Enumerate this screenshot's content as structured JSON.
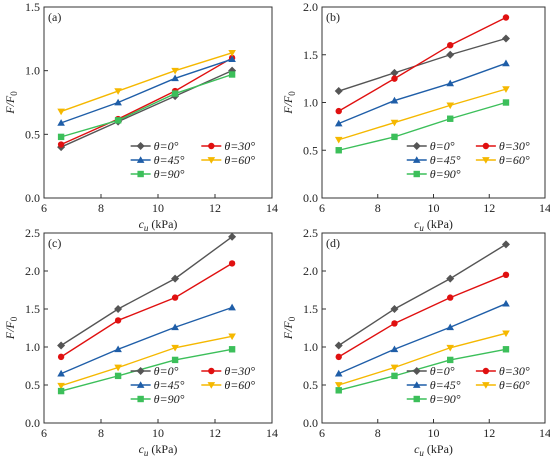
{
  "chart_data": [
    {
      "type": "line",
      "panel_label": "(a)",
      "xlabel": "c",
      "xlabel_sub": "u",
      "xlabel_unit": " (kPa)",
      "ylabel": "F/F",
      "ylabel_sub": "0",
      "xlim": [
        6,
        14
      ],
      "ylim": [
        0,
        1.5
      ],
      "xticks": [
        "6",
        "8",
        "10",
        "12",
        "14"
      ],
      "yticks": [
        "0.0",
        "0.5",
        "1.0",
        "1.5"
      ],
      "ytick_values": [
        0,
        0.5,
        1.0,
        1.5
      ],
      "x": [
        6.6,
        8.6,
        10.6,
        12.6
      ],
      "series": [
        {
          "name": "θ=0°",
          "values": [
            0.4,
            0.6,
            0.8,
            1.0
          ]
        },
        {
          "name": "θ=30°",
          "values": [
            0.42,
            0.62,
            0.84,
            1.1
          ]
        },
        {
          "name": "θ=45°",
          "values": [
            0.59,
            0.75,
            0.94,
            1.09
          ]
        },
        {
          "name": "θ=60°",
          "values": [
            0.68,
            0.84,
            1.0,
            1.14
          ]
        },
        {
          "name": "θ=90°",
          "values": [
            0.48,
            0.61,
            0.82,
            0.97
          ]
        }
      ]
    },
    {
      "type": "line",
      "panel_label": "(b)",
      "xlabel": "c",
      "xlabel_sub": "u",
      "xlabel_unit": " (kPa)",
      "ylabel": "F/F",
      "ylabel_sub": "0",
      "xlim": [
        6,
        14
      ],
      "ylim": [
        0,
        2.0
      ],
      "xticks": [
        "6",
        "8",
        "10",
        "12",
        "14"
      ],
      "yticks": [
        "0.0",
        "0.5",
        "1.0",
        "1.5",
        "2.0"
      ],
      "ytick_values": [
        0,
        0.5,
        1.0,
        1.5,
        2.0
      ],
      "x": [
        6.6,
        8.6,
        10.6,
        12.6
      ],
      "series": [
        {
          "name": "θ=0°",
          "values": [
            1.12,
            1.31,
            1.5,
            1.67
          ]
        },
        {
          "name": "θ=30°",
          "values": [
            0.91,
            1.25,
            1.6,
            1.89
          ]
        },
        {
          "name": "θ=45°",
          "values": [
            0.78,
            1.02,
            1.2,
            1.41
          ]
        },
        {
          "name": "θ=60°",
          "values": [
            0.61,
            0.79,
            0.97,
            1.14
          ]
        },
        {
          "name": "θ=90°",
          "values": [
            0.5,
            0.64,
            0.83,
            1.0
          ]
        }
      ]
    },
    {
      "type": "line",
      "panel_label": "(c)",
      "xlabel": "c",
      "xlabel_sub": "u",
      "xlabel_unit": " (kPa)",
      "ylabel": "F/F",
      "ylabel_sub": "0",
      "xlim": [
        6,
        14
      ],
      "ylim": [
        0,
        2.5
      ],
      "xticks": [
        "6",
        "8",
        "10",
        "12",
        "14"
      ],
      "yticks": [
        "0.0",
        "0.5",
        "1.0",
        "1.5",
        "2.0",
        "2.5"
      ],
      "ytick_values": [
        0,
        0.5,
        1.0,
        1.5,
        2.0,
        2.5
      ],
      "x": [
        6.6,
        8.6,
        10.6,
        12.6
      ],
      "series": [
        {
          "name": "θ=0°",
          "values": [
            1.02,
            1.5,
            1.9,
            2.45
          ]
        },
        {
          "name": "θ=30°",
          "values": [
            0.87,
            1.35,
            1.65,
            2.1
          ]
        },
        {
          "name": "θ=45°",
          "values": [
            0.65,
            0.97,
            1.26,
            1.52
          ]
        },
        {
          "name": "θ=60°",
          "values": [
            0.49,
            0.73,
            0.99,
            1.14
          ]
        },
        {
          "name": "θ=90°",
          "values": [
            0.42,
            0.62,
            0.83,
            0.97
          ]
        }
      ]
    },
    {
      "type": "line",
      "panel_label": "(d)",
      "xlabel": "c",
      "xlabel_sub": "u",
      "xlabel_unit": " (kPa)",
      "ylabel": "F/F",
      "ylabel_sub": "0",
      "xlim": [
        6,
        14
      ],
      "ylim": [
        0,
        2.5
      ],
      "xticks": [
        "6",
        "8",
        "10",
        "12",
        "14"
      ],
      "yticks": [
        "0.0",
        "0.5",
        "1.0",
        "1.5",
        "2.0",
        "2.5"
      ],
      "ytick_values": [
        0,
        0.5,
        1.0,
        1.5,
        2.0,
        2.5
      ],
      "x": [
        6.6,
        8.6,
        10.6,
        12.6
      ],
      "series": [
        {
          "name": "θ=0°",
          "values": [
            1.02,
            1.5,
            1.9,
            2.35
          ]
        },
        {
          "name": "θ=30°",
          "values": [
            0.87,
            1.31,
            1.65,
            1.95
          ]
        },
        {
          "name": "θ=45°",
          "values": [
            0.65,
            0.97,
            1.26,
            1.57
          ]
        },
        {
          "name": "θ=60°",
          "values": [
            0.5,
            0.73,
            0.99,
            1.18
          ]
        },
        {
          "name": "θ=90°",
          "values": [
            0.43,
            0.62,
            0.83,
            0.97
          ]
        }
      ]
    }
  ],
  "series_style": [
    {
      "key": "theta-0",
      "color": "#555555",
      "marker": "diamond"
    },
    {
      "key": "theta-30",
      "color": "#e01010",
      "marker": "circle"
    },
    {
      "key": "theta-45",
      "color": "#1f5ea8",
      "marker": "triangle"
    },
    {
      "key": "theta-60",
      "color": "#f5b800",
      "marker": "triangle-down"
    },
    {
      "key": "theta-90",
      "color": "#3cbf5a",
      "marker": "square"
    }
  ],
  "legend_placement": "bottom-right",
  "grid": false
}
